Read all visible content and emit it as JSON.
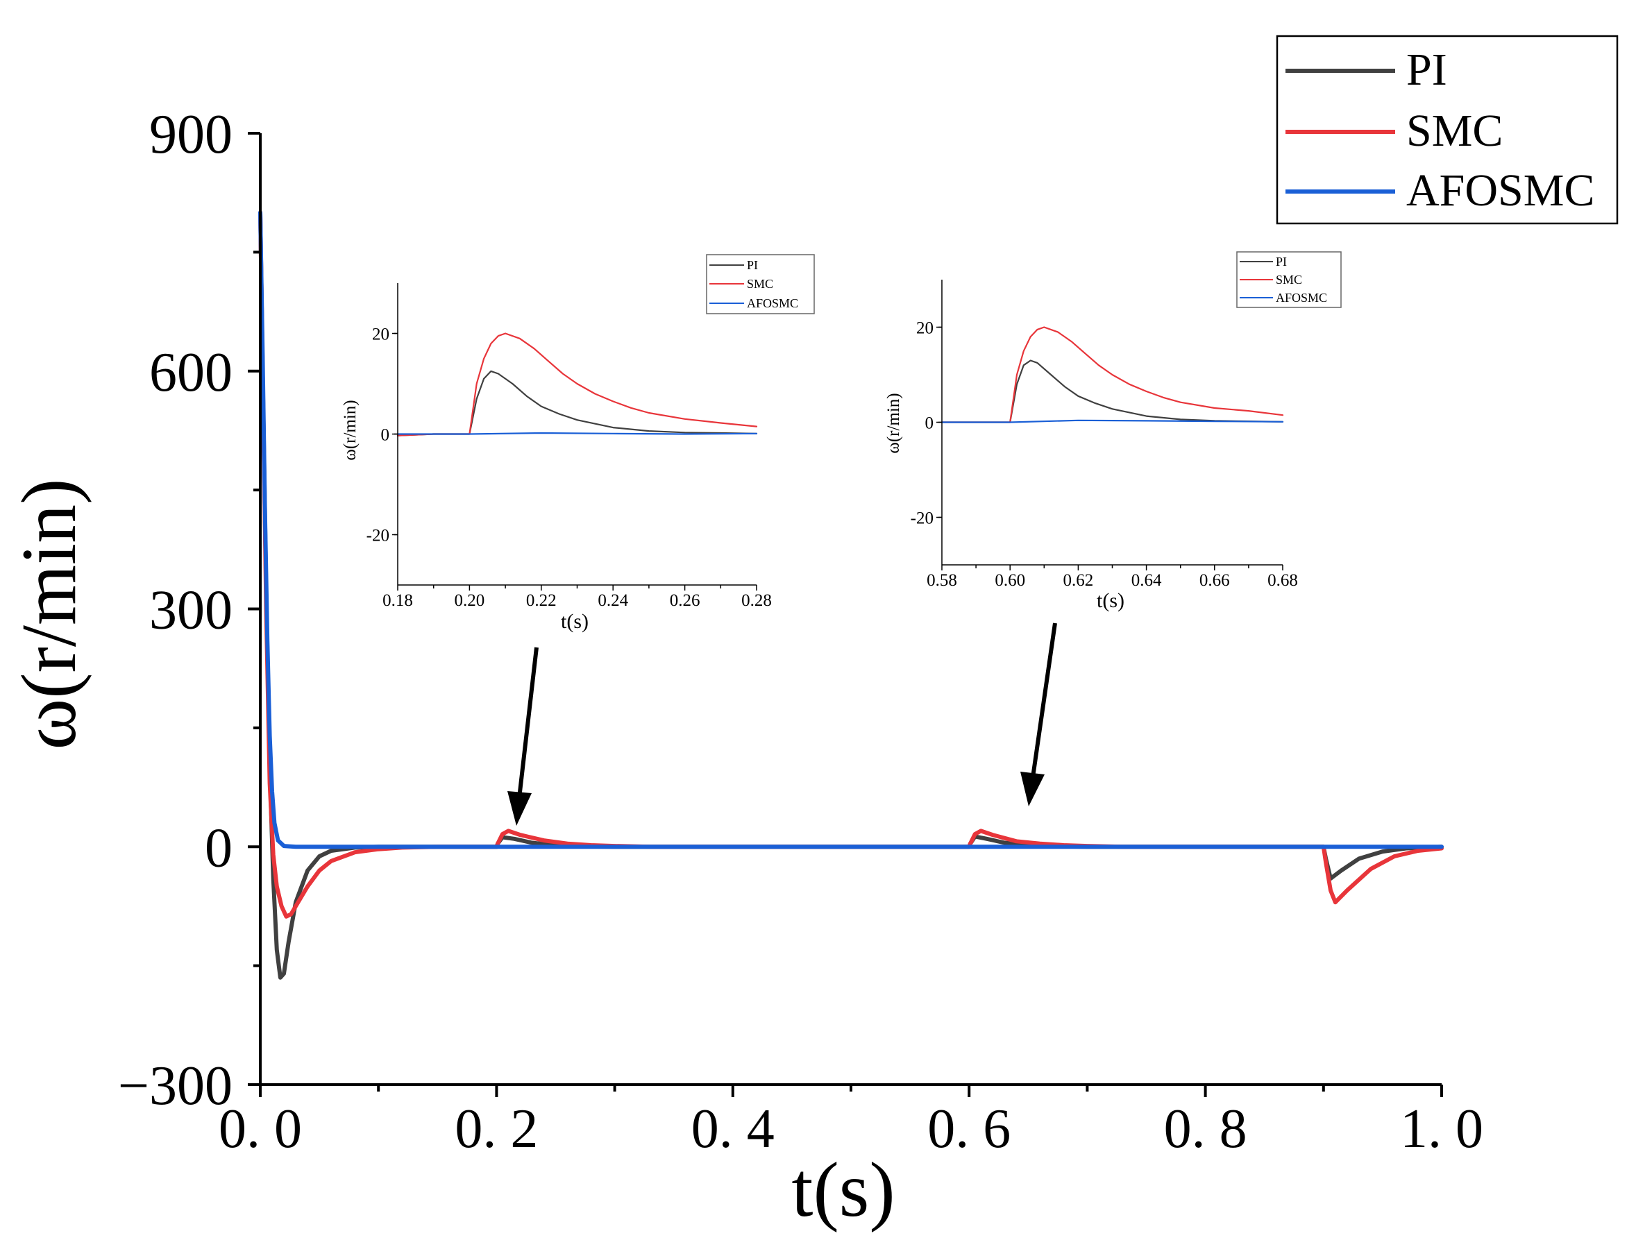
{
  "chart_data": [
    {
      "type": "line",
      "id": "main",
      "title": "",
      "xlabel": "t(s)",
      "ylabel": "ω(r/min)",
      "xlim": [
        0,
        1.0
      ],
      "ylim": [
        -300,
        900
      ],
      "xticks": [
        0.0,
        0.2,
        0.4,
        0.6,
        0.8,
        1.0
      ],
      "xtick_labels": [
        "0. 0",
        "0. 2",
        "0. 4",
        "0. 6",
        "0. 8",
        "1. 0"
      ],
      "yticks": [
        -300,
        0,
        300,
        600,
        900
      ],
      "ytick_labels": [
        "−300",
        "0",
        "300",
        "600",
        "900"
      ],
      "legend": {
        "placement": "top-right",
        "entries": [
          "PI",
          "SMC",
          "AFOSMC"
        ]
      },
      "grid": false,
      "series": [
        {
          "name": "PI",
          "color": "#404040",
          "x": [
            0.0,
            0.002,
            0.005,
            0.008,
            0.011,
            0.014,
            0.017,
            0.02,
            0.024,
            0.03,
            0.04,
            0.05,
            0.06,
            0.08,
            0.1,
            0.2,
            0.201,
            0.205,
            0.215,
            0.23,
            0.25,
            0.27,
            0.3,
            0.6,
            0.601,
            0.605,
            0.615,
            0.63,
            0.65,
            0.67,
            0.7,
            0.9,
            0.902,
            0.906,
            0.915,
            0.93,
            0.95,
            0.97,
            1.0
          ],
          "y": [
            800,
            600,
            320,
            100,
            -40,
            -130,
            -165,
            -160,
            -120,
            -70,
            -30,
            -12,
            -5,
            -1,
            0,
            0,
            4,
            12,
            10,
            5,
            2,
            0.5,
            0,
            0,
            4,
            13,
            10,
            5,
            2,
            0.5,
            0,
            0,
            -15,
            -40,
            -30,
            -15,
            -6,
            -2,
            0
          ]
        },
        {
          "name": "SMC",
          "color": "#e8353a",
          "x": [
            0.0,
            0.002,
            0.005,
            0.008,
            0.011,
            0.014,
            0.018,
            0.022,
            0.026,
            0.03,
            0.04,
            0.05,
            0.06,
            0.08,
            0.1,
            0.12,
            0.15,
            0.2,
            0.201,
            0.205,
            0.21,
            0.22,
            0.24,
            0.26,
            0.28,
            0.3,
            0.33,
            0.6,
            0.601,
            0.605,
            0.61,
            0.62,
            0.64,
            0.66,
            0.68,
            0.7,
            0.73,
            0.9,
            0.902,
            0.906,
            0.91,
            0.92,
            0.94,
            0.96,
            0.98,
            1.0
          ],
          "y": [
            800,
            600,
            300,
            80,
            -10,
            -50,
            -75,
            -88,
            -85,
            -75,
            -50,
            -30,
            -18,
            -7,
            -3,
            -1,
            0,
            0,
            4,
            16,
            20,
            15,
            8,
            4,
            2,
            1,
            0,
            0,
            4,
            16,
            20,
            15,
            7,
            4,
            2,
            1,
            0,
            0,
            -20,
            -55,
            -70,
            -55,
            -28,
            -12,
            -5,
            -2
          ]
        },
        {
          "name": "AFOSMC",
          "color": "#1a5fd6",
          "x": [
            0.0,
            0.002,
            0.004,
            0.006,
            0.008,
            0.01,
            0.012,
            0.015,
            0.02,
            0.03,
            0.2,
            0.6,
            0.9,
            1.0
          ],
          "y": [
            800,
            620,
            420,
            260,
            140,
            70,
            30,
            8,
            1,
            0,
            0,
            0,
            0,
            0
          ]
        }
      ]
    },
    {
      "type": "line",
      "id": "inset-1",
      "title": "",
      "xlabel": "t(s)",
      "ylabel": "ω(r/min)",
      "xlim": [
        0.18,
        0.28
      ],
      "ylim": [
        -30,
        30
      ],
      "xticks": [
        0.18,
        0.2,
        0.22,
        0.24,
        0.26,
        0.28
      ],
      "xtick_labels": [
        "0.18",
        "0.20",
        "0.22",
        "0.24",
        "0.26",
        "0.28"
      ],
      "yticks": [
        -20,
        0,
        20
      ],
      "ytick_labels": [
        "-20",
        "0",
        "20"
      ],
      "legend": {
        "placement": "top-right",
        "entries": [
          "PI",
          "SMC",
          "AFOSMC"
        ]
      },
      "grid": false,
      "series": [
        {
          "name": "PI",
          "color": "#404040",
          "x": [
            0.18,
            0.19,
            0.2,
            0.202,
            0.204,
            0.206,
            0.208,
            0.212,
            0.216,
            0.22,
            0.225,
            0.23,
            0.24,
            0.25,
            0.26,
            0.27,
            0.28
          ],
          "y": [
            -0.3,
            0,
            0,
            7,
            11,
            12.5,
            12,
            10,
            7.5,
            5.5,
            4,
            2.8,
            1.3,
            0.6,
            0.3,
            0.2,
            0.1
          ]
        },
        {
          "name": "SMC",
          "color": "#e8353a",
          "x": [
            0.18,
            0.19,
            0.2,
            0.202,
            0.204,
            0.206,
            0.208,
            0.21,
            0.214,
            0.218,
            0.222,
            0.226,
            0.23,
            0.235,
            0.24,
            0.245,
            0.25,
            0.26,
            0.27,
            0.28
          ],
          "y": [
            -0.3,
            0,
            0,
            10,
            15,
            18,
            19.5,
            20,
            19,
            17,
            14.5,
            12,
            10,
            8,
            6.5,
            5.2,
            4.2,
            3,
            2.2,
            1.5
          ]
        },
        {
          "name": "AFOSMC",
          "color": "#1a5fd6",
          "x": [
            0.18,
            0.2,
            0.22,
            0.24,
            0.26,
            0.28
          ],
          "y": [
            0,
            0,
            0.2,
            0.1,
            0,
            0.1
          ]
        }
      ]
    },
    {
      "type": "line",
      "id": "inset-2",
      "title": "",
      "xlabel": "t(s)",
      "ylabel": "ω(r/min)",
      "xlim": [
        0.58,
        0.68
      ],
      "ylim": [
        -30,
        30
      ],
      "xticks": [
        0.58,
        0.6,
        0.62,
        0.64,
        0.66,
        0.68
      ],
      "xtick_labels": [
        "0.58",
        "0.60",
        "0.62",
        "0.64",
        "0.66",
        "0.68"
      ],
      "yticks": [
        -20,
        0,
        20
      ],
      "ytick_labels": [
        "-20",
        "0",
        "20"
      ],
      "legend": {
        "placement": "top-right",
        "entries": [
          "PI",
          "SMC",
          "AFOSMC"
        ]
      },
      "grid": false,
      "series": [
        {
          "name": "PI",
          "color": "#404040",
          "x": [
            0.58,
            0.59,
            0.6,
            0.602,
            0.604,
            0.606,
            0.608,
            0.612,
            0.616,
            0.62,
            0.625,
            0.63,
            0.64,
            0.65,
            0.66,
            0.67,
            0.68
          ],
          "y": [
            0,
            0,
            0,
            8,
            12,
            13,
            12.5,
            10,
            7.5,
            5.5,
            4,
            2.8,
            1.3,
            0.6,
            0.3,
            0.2,
            0.1
          ]
        },
        {
          "name": "SMC",
          "color": "#e8353a",
          "x": [
            0.58,
            0.59,
            0.6,
            0.602,
            0.604,
            0.606,
            0.608,
            0.61,
            0.614,
            0.618,
            0.622,
            0.626,
            0.63,
            0.635,
            0.64,
            0.645,
            0.65,
            0.66,
            0.67,
            0.68
          ],
          "y": [
            0,
            0,
            0,
            10,
            15,
            18,
            19.5,
            20,
            19,
            17,
            14.5,
            12,
            10,
            8,
            6.5,
            5.2,
            4.2,
            3,
            2.4,
            1.5
          ]
        },
        {
          "name": "AFOSMC",
          "color": "#1a5fd6",
          "x": [
            0.58,
            0.6,
            0.62,
            0.64,
            0.66,
            0.68
          ],
          "y": [
            0,
            0,
            0.4,
            0.3,
            0.2,
            0.1
          ]
        }
      ]
    }
  ]
}
